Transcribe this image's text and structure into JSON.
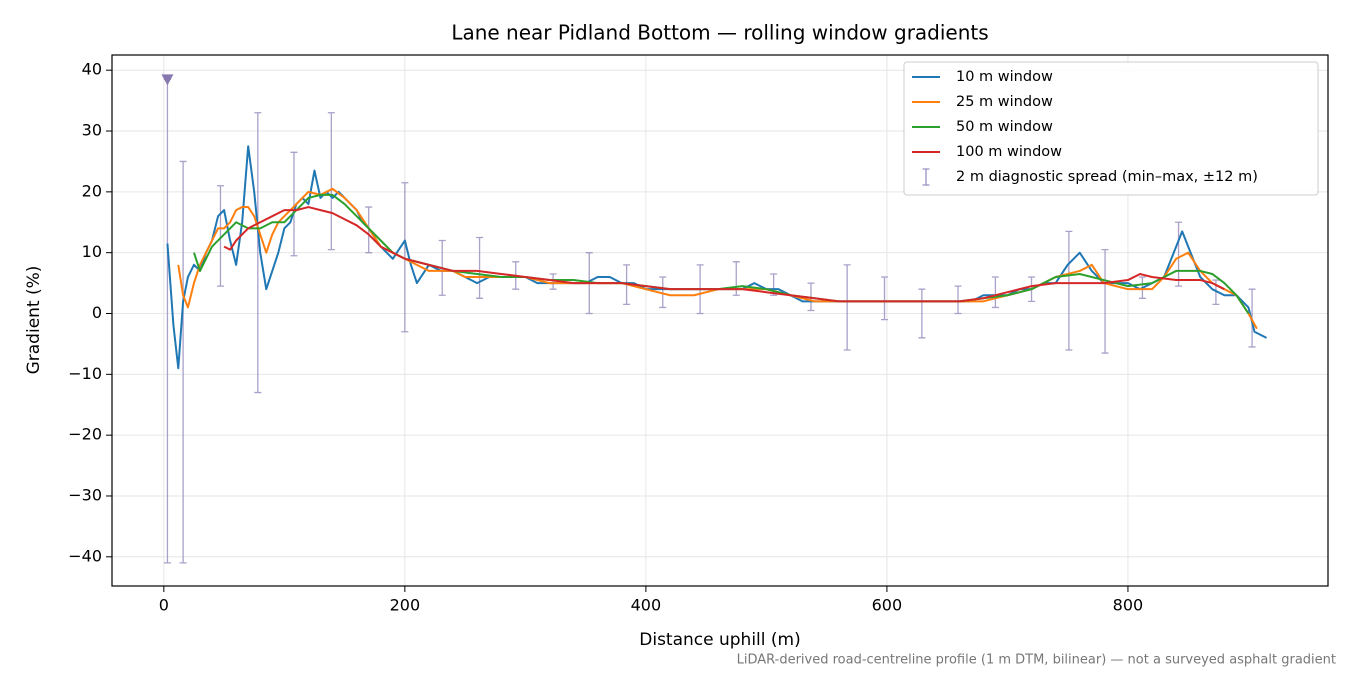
{
  "chart_data": {
    "type": "line",
    "title": "Lane near Pidland Bottom — rolling window gradients",
    "xlabel": "Distance uphill (m)",
    "ylabel": "Gradient (%)",
    "footnote": "LiDAR-derived road-centreline profile (1 m DTM, bilinear) — not a surveyed asphalt gradient",
    "xlim": [
      -43,
      966
    ],
    "ylim": [
      -44.8,
      42.5
    ],
    "xticks": [
      0,
      200,
      400,
      600,
      800
    ],
    "yticks": [
      {
        "value": -40,
        "label": "−40"
      },
      {
        "value": -30,
        "label": "−30"
      },
      {
        "value": -20,
        "label": "−20"
      },
      {
        "value": -10,
        "label": "−10"
      },
      0,
      10,
      20,
      30,
      40
    ],
    "grid": true,
    "legend": "upper right",
    "series": [
      {
        "name": "10 m window",
        "color": "#1f77b4",
        "x": [
          3,
          8,
          12,
          16,
          20,
          25,
          30,
          35,
          40,
          45,
          50,
          55,
          60,
          65,
          70,
          75,
          80,
          85,
          90,
          95,
          100,
          105,
          110,
          115,
          120,
          125,
          130,
          135,
          140,
          145,
          150,
          155,
          160,
          165,
          170,
          180,
          190,
          200,
          205,
          210,
          220,
          230,
          240,
          250,
          260,
          270,
          280,
          290,
          300,
          310,
          320,
          330,
          340,
          350,
          360,
          370,
          380,
          390,
          400,
          410,
          420,
          430,
          440,
          450,
          460,
          470,
          480,
          490,
          500,
          510,
          520,
          530,
          540,
          550,
          560,
          570,
          580,
          590,
          600,
          610,
          620,
          630,
          640,
          650,
          660,
          670,
          680,
          690,
          700,
          710,
          720,
          730,
          740,
          750,
          760,
          770,
          780,
          790,
          800,
          810,
          820,
          830,
          840,
          845,
          850,
          860,
          870,
          880,
          890,
          900,
          905,
          915
        ],
        "values": [
          11.5,
          -2,
          -9,
          2,
          6,
          8,
          7,
          10,
          12,
          16,
          17,
          12,
          8,
          15,
          27.5,
          20,
          10,
          4,
          7,
          10,
          14,
          15,
          18,
          19,
          18,
          23.5,
          19,
          20,
          19,
          20,
          19,
          18,
          17,
          15,
          14,
          11,
          9,
          12,
          8,
          5,
          8,
          7,
          7,
          6,
          5,
          6,
          6,
          6,
          6,
          5,
          5,
          5,
          5,
          5,
          6,
          6,
          5,
          5,
          4,
          4,
          4,
          4,
          4,
          4,
          4,
          4,
          4,
          5,
          4,
          4,
          3,
          2,
          2,
          2,
          2,
          2,
          2,
          2,
          2,
          2,
          2,
          2,
          2,
          2,
          2,
          2,
          3,
          3,
          3,
          4,
          4,
          5,
          5,
          8,
          10,
          7,
          5,
          5,
          5,
          4,
          5,
          6,
          11,
          13.5,
          11,
          6,
          4,
          3,
          3,
          1,
          -3,
          -4
        ]
      },
      {
        "name": "25 m window",
        "color": "#ff7f0e",
        "x": [
          12,
          16,
          20,
          25,
          30,
          35,
          40,
          45,
          50,
          55,
          60,
          65,
          70,
          75,
          80,
          85,
          90,
          95,
          100,
          110,
          120,
          130,
          140,
          150,
          160,
          170,
          180,
          190,
          200,
          210,
          220,
          230,
          240,
          250,
          260,
          270,
          280,
          290,
          300,
          320,
          340,
          360,
          380,
          400,
          420,
          440,
          460,
          480,
          500,
          520,
          540,
          560,
          580,
          600,
          620,
          640,
          660,
          680,
          700,
          720,
          740,
          760,
          770,
          780,
          800,
          820,
          830,
          840,
          850,
          860,
          870,
          880,
          890,
          900,
          907
        ],
        "values": [
          8,
          3,
          1,
          5,
          8,
          10,
          12,
          14,
          14,
          15,
          17,
          17.5,
          17.5,
          16,
          13,
          10,
          13,
          15,
          16,
          18,
          20,
          19.5,
          20.5,
          19,
          17,
          14,
          11,
          10,
          9,
          8,
          7,
          7,
          7,
          6,
          6,
          6,
          6,
          6,
          6,
          5,
          5,
          5,
          5,
          4,
          3,
          3,
          4,
          4,
          4,
          3,
          2,
          2,
          2,
          2,
          2,
          2,
          2,
          2,
          3,
          4,
          6,
          7,
          8,
          5,
          4,
          4,
          6,
          9,
          10,
          7,
          5,
          4,
          3,
          0,
          -2.5
        ]
      },
      {
        "name": "50 m window",
        "color": "#2ca02c",
        "x": [
          25,
          30,
          40,
          50,
          60,
          70,
          80,
          90,
          100,
          110,
          120,
          130,
          140,
          150,
          160,
          170,
          180,
          190,
          200,
          220,
          240,
          260,
          280,
          300,
          320,
          340,
          360,
          380,
          400,
          420,
          440,
          460,
          480,
          500,
          520,
          540,
          560,
          580,
          600,
          620,
          640,
          660,
          680,
          700,
          720,
          740,
          760,
          780,
          800,
          820,
          840,
          860,
          870,
          880,
          890,
          900
        ],
        "values": [
          10,
          7,
          11,
          13,
          15,
          14,
          14,
          15,
          15,
          17,
          19,
          19.5,
          19.5,
          18,
          16,
          14,
          12,
          10,
          9,
          8,
          7,
          6.5,
          6,
          6,
          5.5,
          5.5,
          5,
          5,
          4.5,
          4,
          4,
          4,
          4.5,
          4,
          3,
          2.5,
          2,
          2,
          2,
          2,
          2,
          2,
          2.5,
          3,
          4,
          6,
          6.5,
          5.5,
          4.5,
          5,
          7,
          7,
          6.5,
          5,
          3,
          0
        ]
      },
      {
        "name": "100 m window",
        "color": "#d62728",
        "x": [
          50,
          55,
          60,
          70,
          80,
          90,
          100,
          110,
          120,
          130,
          140,
          150,
          160,
          170,
          180,
          190,
          200,
          220,
          240,
          260,
          280,
          300,
          320,
          340,
          360,
          380,
          400,
          420,
          440,
          460,
          480,
          500,
          520,
          540,
          560,
          580,
          600,
          620,
          640,
          660,
          680,
          700,
          720,
          740,
          760,
          780,
          800,
          810,
          820,
          840,
          860,
          870,
          880
        ],
        "values": [
          11,
          10.5,
          12,
          14,
          15,
          16,
          17,
          17,
          17.5,
          17,
          16.5,
          15.5,
          14.5,
          13,
          11,
          10,
          9,
          8,
          7,
          7,
          6.5,
          6,
          5.5,
          5,
          5,
          5,
          4.5,
          4,
          4,
          4,
          4,
          3.5,
          3,
          2.5,
          2,
          2,
          2,
          2,
          2,
          2,
          2.5,
          3.5,
          4.5,
          5,
          5,
          5,
          5.5,
          6.5,
          6,
          5.5,
          5.5,
          5,
          4
        ]
      }
    ],
    "error_bars": {
      "name": "2 m diagnostic spread (min–max, ±12 m)",
      "color": "#9b8fc0",
      "x": [
        3,
        16,
        47,
        78,
        108,
        139,
        170,
        200,
        231,
        262,
        292,
        323,
        353,
        384,
        414,
        445,
        475,
        506,
        537,
        567,
        598,
        629,
        659,
        690,
        720,
        751,
        781,
        812,
        842,
        873,
        903
      ],
      "low": [
        -41,
        -41,
        4.5,
        -13,
        9.5,
        10.5,
        10,
        -3,
        3,
        2.5,
        4,
        4,
        0,
        1.5,
        1,
        0,
        3,
        3,
        0.5,
        -6,
        -1,
        -4,
        0,
        1,
        2,
        -6,
        -6.5,
        2.5,
        4.5,
        1.5,
        -5.5
      ],
      "high": [
        38.5,
        25,
        21,
        33,
        26.5,
        33,
        17.5,
        21.5,
        12,
        12.5,
        8.5,
        6.5,
        10,
        8,
        6,
        8,
        8.5,
        6.5,
        5,
        8,
        6,
        4,
        4.5,
        6,
        6,
        13.5,
        10.5,
        6,
        15,
        5.5,
        4
      ]
    },
    "clip_marker": {
      "x": 3,
      "y": 38.5,
      "color": "#8878b0"
    }
  }
}
